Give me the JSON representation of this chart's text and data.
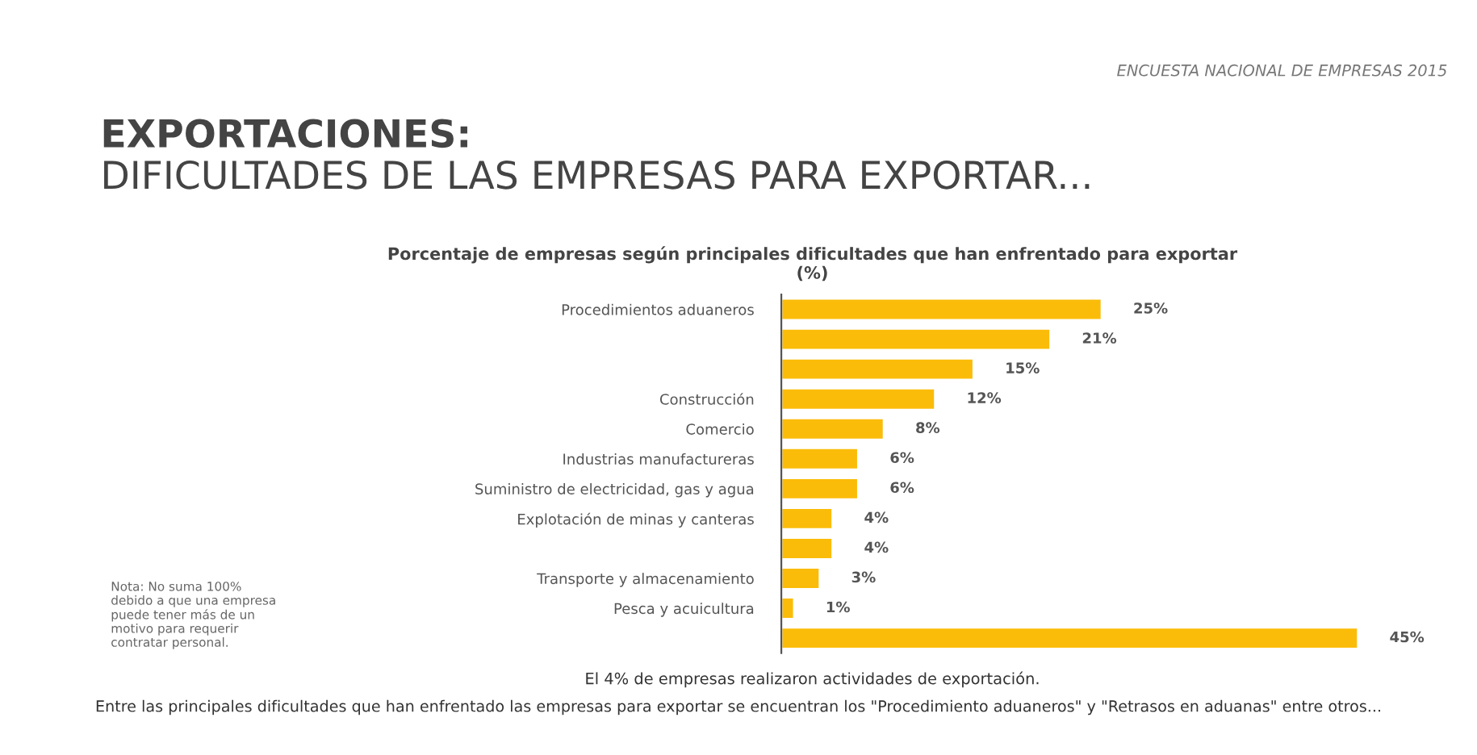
{
  "chart_data": {
    "type": "bar",
    "orientation": "horizontal",
    "title": "EXPORTACIONES:",
    "subtitle": "DIFICULTADES DE LAS EMPRESAS PARA EXPORTAR...",
    "categories": [
      "Procedimientos aduaneros",
      null,
      null,
      "Construcción",
      "Comercio",
      "Industrias manufactureras",
      "Suministro de electricidad, gas y agua",
      "Explotación de minas y canteras",
      null,
      "Transporte y almacenamiento",
      "Pesca y acuicultura",
      null
    ],
    "values": [
      25,
      21,
      15,
      12,
      8,
      6,
      6,
      4,
      4,
      3,
      1,
      45
    ],
    "value_labels": [
      "25%",
      "21%",
      "15%",
      "12%",
      "8%",
      "6%",
      "6%",
      "4%",
      "4%",
      "3%",
      "1%",
      "45%"
    ],
    "color": "#fbbc09",
    "tick_labels": "y",
    "grid": false,
    "legend": false,
    "annotations": [
      "ENCUESTA NACIONAL DE EMPRESAS 2015",
      "Porcentaje de empresas según principales dificultades que han enfrentado para exportar\n(%)",
      "Nota: No suma 100%\ndebido a que una empresa\npuede tener más de un\nmotivo para requerir\ncontratar personal.",
      "El 4% de empresas realizaron actividades de exportación.",
      "Entre las principales dificultades que han enfrentado las empresas para exportar se encuentran los \"Procedimiento aduaneros\" y \"Retrasos en aduanas\" entre otros..."
    ]
  }
}
